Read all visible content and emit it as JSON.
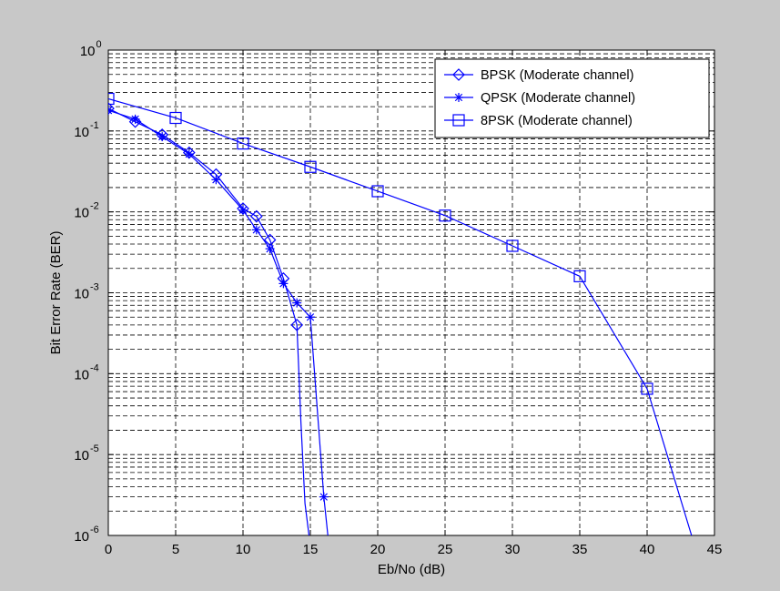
{
  "chart_data": {
    "type": "line",
    "title": "",
    "xlabel": "Eb/No (dB)",
    "ylabel": "Bit Error Rate (BER)",
    "xlim": [
      0,
      45
    ],
    "ylim": [
      1e-06,
      1
    ],
    "y_scale": "log",
    "grid": true,
    "legend_position": "top-right",
    "x_ticks": [
      "0",
      "5",
      "10",
      "15",
      "20",
      "25",
      "30",
      "35",
      "40",
      "45"
    ],
    "y_ticks": [
      {
        "base": "10",
        "exp": "0"
      },
      {
        "base": "10",
        "exp": "-1"
      },
      {
        "base": "10",
        "exp": "-2"
      },
      {
        "base": "10",
        "exp": "-3"
      },
      {
        "base": "10",
        "exp": "-4"
      },
      {
        "base": "10",
        "exp": "-5"
      },
      {
        "base": "10",
        "exp": "-6"
      }
    ],
    "series": [
      {
        "name": "BPSK (Moderate channel)",
        "marker": "diamond",
        "color": "#0000ff",
        "x": [
          0,
          2,
          4,
          6,
          8,
          10,
          11,
          12,
          13,
          14
        ],
        "y": [
          0.19,
          0.13,
          0.09,
          0.054,
          0.029,
          0.011,
          0.0088,
          0.0045,
          0.0015,
          0.0004
        ],
        "tail_x": [
          14.3,
          14.6,
          14.9
        ],
        "tail_y": [
          2.5e-05,
          2.5e-06,
          1e-06
        ]
      },
      {
        "name": "QPSK (Moderate channel)",
        "marker": "star",
        "color": "#0000ff",
        "x": [
          0,
          2,
          4,
          6,
          8,
          10,
          11,
          12,
          13,
          14,
          15,
          16
        ],
        "y": [
          0.18,
          0.14,
          0.085,
          0.052,
          0.025,
          0.0105,
          0.006,
          0.0035,
          0.0013,
          0.00075,
          0.0005,
          3e-06
        ],
        "tail_x": [
          16.3
        ],
        "tail_y": [
          1e-06
        ]
      },
      {
        "name": "8PSK (Moderate channel)",
        "marker": "square",
        "color": "#0000ff",
        "x": [
          0,
          5,
          10,
          15,
          20,
          25,
          30,
          35,
          40
        ],
        "y": [
          0.25,
          0.145,
          0.07,
          0.036,
          0.018,
          0.009,
          0.0038,
          0.0016,
          6.5e-05
        ],
        "tail_x": [
          43.3
        ],
        "tail_y": [
          1e-06
        ]
      }
    ]
  }
}
